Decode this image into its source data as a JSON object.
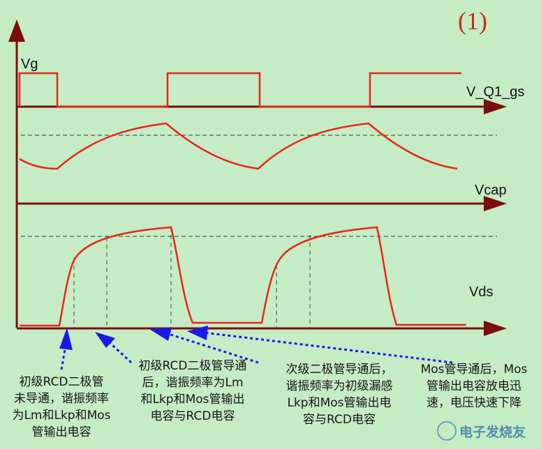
{
  "figure_tag": "(1)",
  "signals": {
    "vg": "Vg",
    "vq1gs": "V_Q1_gs",
    "vcap": "Vcap",
    "vds": "Vds"
  },
  "notes": [
    [
      "初级RCD二极管",
      "未导通，谐振频率",
      "为Lm和Lkp和Mos",
      "管输出电容"
    ],
    [
      "初级RCD二极管导通",
      "后，谐振频率为Lm",
      "和Lkp和Mos管输出",
      "电容与RCD电容"
    ],
    [
      "次级二极管导通后，",
      "谐振频率为初级漏感",
      "Lkp和Mos管输出电",
      "容与RCD电容"
    ],
    [
      "Mos管导通后，Mos",
      "管输出电容放电迅",
      "速，电压快速下降"
    ]
  ],
  "watermark": "电子发烧友",
  "colors": {
    "background": "#c5ecc5",
    "axis": "#7a0d0d",
    "waveform": "#e8251b",
    "annotation_arrow": "#1a1ae6",
    "tag": "#c8281e"
  }
}
